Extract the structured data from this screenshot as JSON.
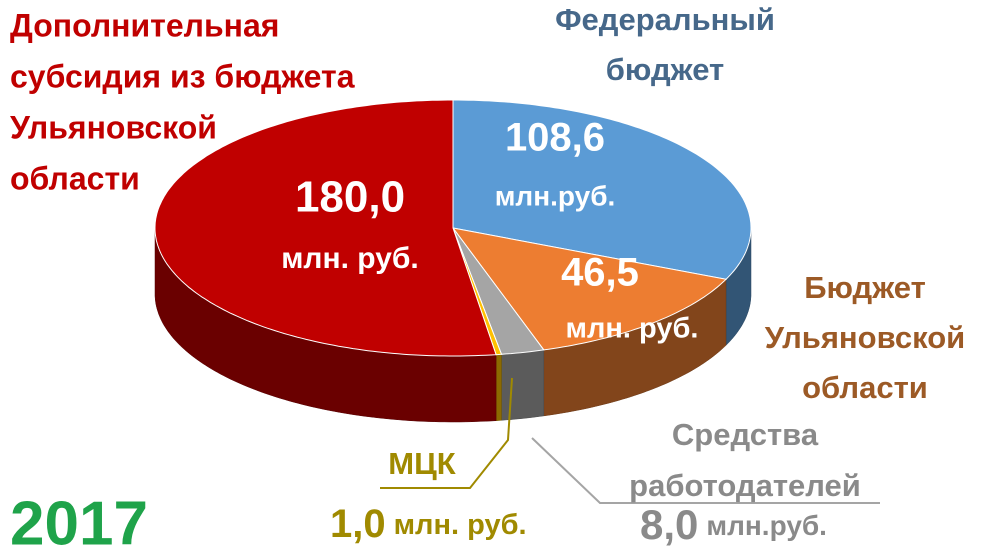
{
  "chart_data": {
    "type": "pie",
    "title": "2017",
    "categories": [
      [
        "Федеральный",
        "бюджет"
      ],
      [
        "Бюджет",
        "Ульяновской",
        "области"
      ],
      [
        "Средства",
        "работодателей"
      ],
      [
        "МЦК"
      ],
      [
        "Дополнительная",
        "субсидия из бюджета",
        "Ульяновской",
        "области"
      ]
    ],
    "values": [
      108.6,
      46.5,
      8.0,
      1.0,
      180.0
    ],
    "value_labels": [
      "108,6",
      "46,5",
      "8,0",
      "1,0",
      "180,0"
    ],
    "value_units": [
      "млн.руб.",
      "млн. руб.",
      "млн.руб.",
      "млн. руб.",
      "млн. руб."
    ],
    "colors": [
      "#5b9bd5",
      "#ed7d31",
      "#a5a5a5",
      "#ffc000",
      "#c00000"
    ],
    "label_colors": [
      "#46688a",
      "#9c5a26",
      "#8a8a8a",
      "#a08a00",
      "#c00000"
    ],
    "title_color": "#1fa34a"
  }
}
